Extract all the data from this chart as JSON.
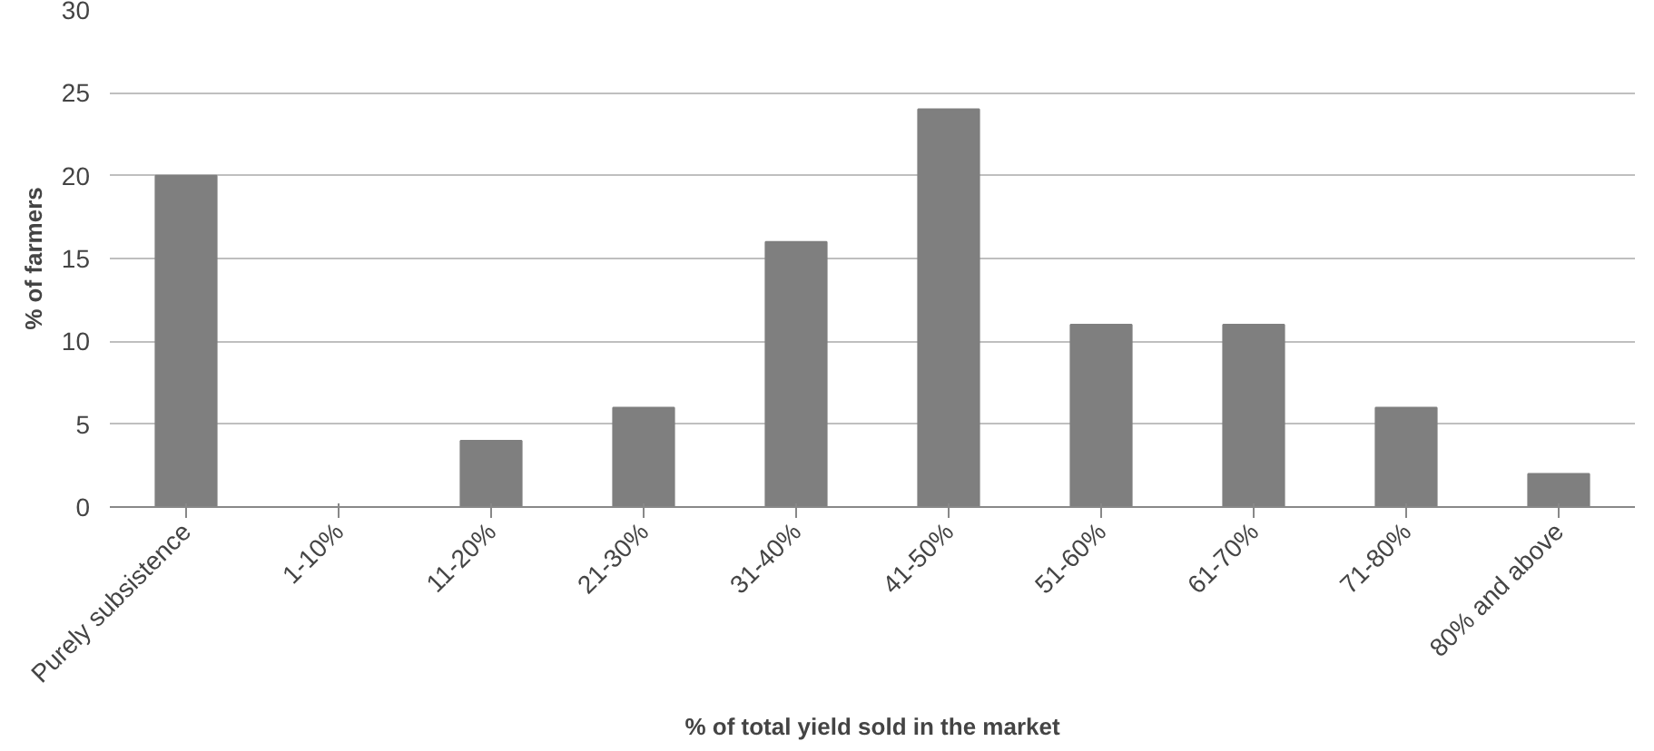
{
  "chart_data": {
    "type": "bar",
    "xlabel": "% of total yield sold in the market",
    "ylabel": "% of farmers",
    "categories": [
      "Purely subsistence",
      "1-10%",
      "11-20%",
      "21-30%",
      "31-40%",
      "41-50%",
      "51-60%",
      "61-70%",
      "71-80%",
      "80% and above"
    ],
    "values": [
      20,
      0,
      4,
      6,
      16,
      24,
      11,
      11,
      6,
      2
    ],
    "color": "#7f7f7f",
    "ylim": [
      0,
      30
    ],
    "yticks": [
      0,
      5,
      10,
      15,
      20,
      25,
      30
    ],
    "grid": "y"
  }
}
